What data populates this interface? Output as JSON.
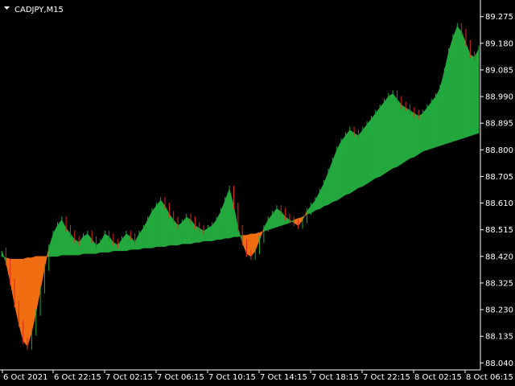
{
  "window": {
    "symbol_label": "CADJPY,M15"
  },
  "colors": {
    "background": "#000000",
    "axis": "#ffffff",
    "bull": "#22a83c",
    "bear": "#e0291b",
    "fill_up": "#22a83c",
    "fill_down": "#f06d12"
  },
  "chart_data": {
    "type": "area",
    "symbol": "CADJPY",
    "timeframe": "M15",
    "title": "CADJPY,M15",
    "ylim": [
      88.015,
      89.32
    ],
    "y_ticks": [
      "89.275",
      "89.180",
      "89.085",
      "88.990",
      "88.895",
      "88.800",
      "88.705",
      "88.610",
      "88.515",
      "88.420",
      "88.325",
      "88.230",
      "88.135",
      "88.040"
    ],
    "x_ticks": [
      "6 Oct 2021",
      "6 Oct 22:15",
      "7 Oct 02:15",
      "7 Oct 06:15",
      "7 Oct 10:15",
      "7 Oct 14:15",
      "7 Oct 18:15",
      "7 Oct 22:15",
      "8 Oct 02:15",
      "8 Oct 06:15"
    ],
    "grid": false,
    "series": [
      {
        "name": "close",
        "values": [
          88.44,
          88.4,
          88.33,
          88.25,
          88.18,
          88.12,
          88.1,
          88.15,
          88.22,
          88.3,
          88.38,
          88.45,
          88.5,
          88.53,
          88.55,
          88.52,
          88.5,
          88.48,
          88.47,
          88.49,
          88.5,
          88.48,
          88.46,
          88.47,
          88.5,
          88.49,
          88.47,
          88.46,
          88.48,
          88.5,
          88.49,
          88.47,
          88.5,
          88.52,
          88.55,
          88.58,
          88.6,
          88.62,
          88.6,
          88.57,
          88.55,
          88.53,
          88.54,
          88.56,
          88.55,
          88.53,
          88.52,
          88.51,
          88.52,
          88.53,
          88.55,
          88.58,
          88.62,
          88.66,
          88.6,
          88.52,
          88.47,
          88.43,
          88.42,
          88.44,
          88.48,
          88.52,
          88.55,
          88.57,
          88.59,
          88.58,
          88.56,
          88.55,
          88.54,
          88.53,
          88.55,
          88.58,
          88.6,
          88.62,
          88.65,
          88.68,
          88.72,
          88.76,
          88.8,
          88.83,
          88.85,
          88.87,
          88.86,
          88.85,
          88.87,
          88.89,
          88.91,
          88.93,
          88.95,
          88.97,
          88.99,
          89.0,
          88.98,
          88.96,
          88.95,
          88.94,
          88.93,
          88.92,
          88.93,
          88.95,
          88.97,
          88.99,
          89.02,
          89.08,
          89.15,
          89.2,
          89.24,
          89.22,
          89.18,
          89.14,
          89.13,
          89.16
        ]
      },
      {
        "name": "baseline",
        "values": [
          88.42,
          88.415,
          88.41,
          88.41,
          88.41,
          88.41,
          88.415,
          88.415,
          88.42,
          88.42,
          88.42,
          88.42,
          88.42,
          88.42,
          88.425,
          88.425,
          88.425,
          88.425,
          88.425,
          88.43,
          88.43,
          88.43,
          88.43,
          88.435,
          88.435,
          88.435,
          88.44,
          88.44,
          88.44,
          88.44,
          88.445,
          88.445,
          88.445,
          88.45,
          88.45,
          88.45,
          88.455,
          88.455,
          88.455,
          88.46,
          88.46,
          88.46,
          88.465,
          88.465,
          88.465,
          88.47,
          88.47,
          88.475,
          88.475,
          88.475,
          88.48,
          88.48,
          88.485,
          88.485,
          88.49,
          88.49,
          88.495,
          88.495,
          88.5,
          88.5,
          88.505,
          88.51,
          88.515,
          88.52,
          88.525,
          88.53,
          88.535,
          88.54,
          88.55,
          88.555,
          88.56,
          88.57,
          88.575,
          88.585,
          88.59,
          88.6,
          88.605,
          88.615,
          88.62,
          88.63,
          88.64,
          88.645,
          88.655,
          88.665,
          88.67,
          88.68,
          88.69,
          88.7,
          88.705,
          88.715,
          88.725,
          88.735,
          88.74,
          88.75,
          88.76,
          88.77,
          88.775,
          88.785,
          88.795,
          88.8,
          88.805,
          88.81,
          88.815,
          88.82,
          88.825,
          88.83,
          88.835,
          88.84,
          88.845,
          88.85,
          88.855,
          88.86
        ]
      }
    ]
  }
}
